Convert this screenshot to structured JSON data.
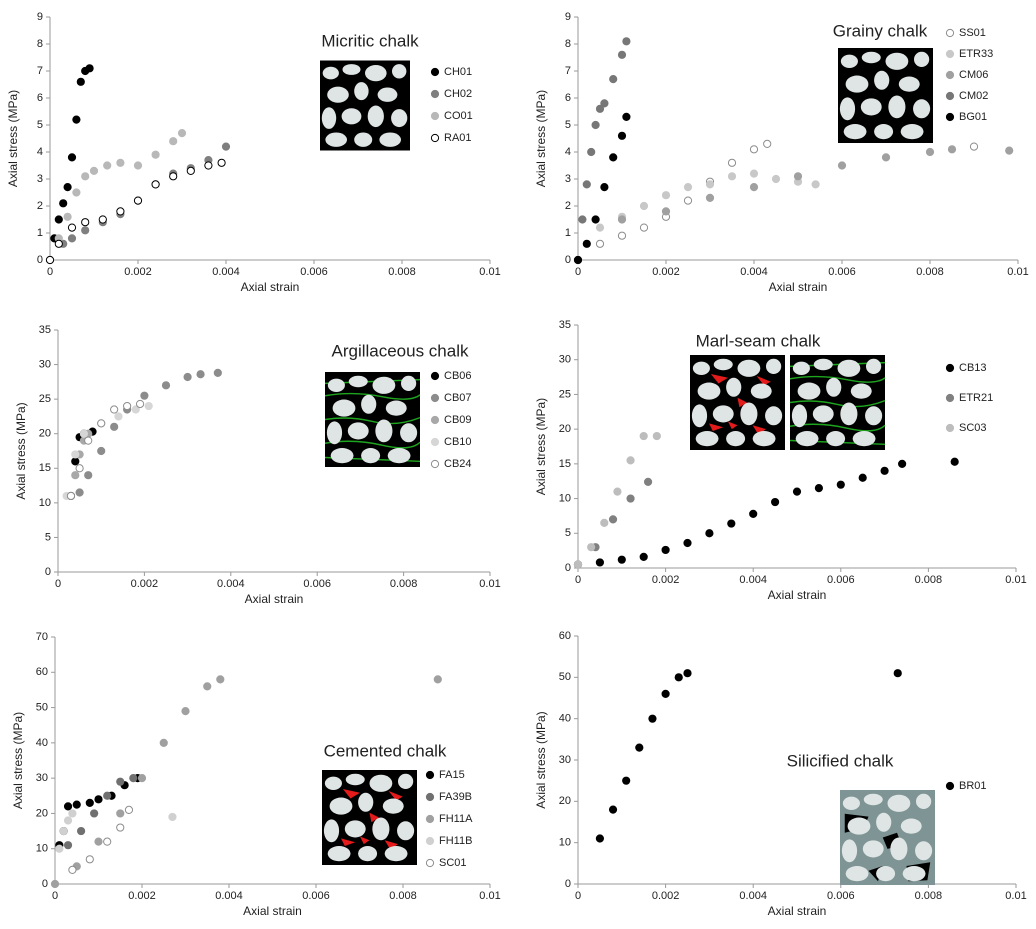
{
  "chart_data": [
    {
      "type": "scatter",
      "title": "Micritic chalk",
      "xlabel": "Axial strain",
      "ylabel": "Axial stress (MPa)",
      "xlim": [
        0,
        0.01
      ],
      "xticks": [
        0,
        0.002,
        0.004,
        0.006,
        0.008,
        0.01
      ],
      "ylim": [
        0,
        9
      ],
      "yticks": [
        0,
        1,
        2,
        3,
        4,
        5,
        6,
        7,
        8,
        9
      ],
      "series": [
        {
          "name": "CH01",
          "color": "#000000",
          "marker": "filled",
          "x": [
            0,
            0.0001,
            0.0002,
            0.0003,
            0.0004,
            0.0005,
            0.0006,
            0.0007,
            0.0008,
            0.0009
          ],
          "values": [
            0,
            0.8,
            1.5,
            2.1,
            2.7,
            3.8,
            5.2,
            6.6,
            7.0,
            7.1
          ]
        },
        {
          "name": "CH02",
          "color": "#7f7f7f",
          "marker": "filled",
          "x": [
            0.0003,
            0.0005,
            0.0008,
            0.0012,
            0.0016,
            0.002,
            0.0024,
            0.0028,
            0.0032,
            0.0036,
            0.004
          ],
          "values": [
            0.6,
            0.8,
            1.1,
            1.4,
            1.7,
            2.2,
            2.8,
            3.2,
            3.4,
            3.7,
            4.2
          ]
        },
        {
          "name": "CO01",
          "color": "#b8b8b8",
          "marker": "filled",
          "x": [
            0,
            0.0002,
            0.0004,
            0.0006,
            0.0008,
            0.001,
            0.0013,
            0.0016,
            0.002,
            0.0024,
            0.0028,
            0.003
          ],
          "values": [
            0,
            0.8,
            1.6,
            2.5,
            3.1,
            3.3,
            3.5,
            3.6,
            3.5,
            3.9,
            4.4,
            4.7
          ]
        },
        {
          "name": "RA01",
          "color": "#000000",
          "marker": "open",
          "x": [
            0,
            0.0002,
            0.0005,
            0.0008,
            0.0012,
            0.0016,
            0.002,
            0.0024,
            0.0028,
            0.0032,
            0.0036,
            0.0039
          ],
          "values": [
            0,
            0.6,
            1.2,
            1.4,
            1.5,
            1.8,
            2.2,
            2.8,
            3.1,
            3.3,
            3.5,
            3.6
          ]
        }
      ]
    },
    {
      "type": "scatter",
      "title": "Grainy chalk",
      "xlabel": "Axial strain",
      "ylabel": "Axial stress (MPa)",
      "xlim": [
        0,
        0.01
      ],
      "xticks": [
        0,
        0.002,
        0.004,
        0.006,
        0.008,
        0.01
      ],
      "ylim": [
        0,
        9
      ],
      "yticks": [
        0,
        1,
        2,
        3,
        4,
        5,
        6,
        7,
        8,
        9
      ],
      "series": [
        {
          "name": "SS01",
          "color": "#8c8c8c",
          "marker": "open",
          "x": [
            0,
            0.0005,
            0.001,
            0.0015,
            0.002,
            0.0025,
            0.003,
            0.0035,
            0.004,
            0.0043,
            0.009
          ],
          "values": [
            0,
            0.6,
            0.9,
            1.2,
            1.6,
            2.2,
            2.9,
            3.6,
            4.1,
            4.3,
            4.2
          ]
        },
        {
          "name": "ETR33",
          "color": "#c8c8c8",
          "marker": "filled",
          "x": [
            0,
            0.0005,
            0.001,
            0.0015,
            0.002,
            0.0025,
            0.003,
            0.0035,
            0.004,
            0.0045,
            0.005,
            0.0054
          ],
          "values": [
            0,
            1.2,
            1.6,
            2.0,
            2.4,
            2.7,
            2.8,
            3.1,
            3.2,
            3.0,
            2.9,
            2.8
          ]
        },
        {
          "name": "CM06",
          "color": "#a0a0a0",
          "marker": "filled",
          "x": [
            0,
            0.001,
            0.002,
            0.003,
            0.004,
            0.005,
            0.006,
            0.007,
            0.008,
            0.0085,
            0.0098
          ],
          "values": [
            0,
            1.5,
            1.8,
            2.3,
            2.7,
            3.1,
            3.5,
            3.8,
            4.0,
            4.1,
            4.05
          ]
        },
        {
          "name": "CM02",
          "color": "#777777",
          "marker": "filled",
          "x": [
            0,
            0.0001,
            0.0002,
            0.0003,
            0.0004,
            0.0005,
            0.0006,
            0.0008,
            0.001,
            0.0011
          ],
          "values": [
            0,
            1.5,
            2.8,
            4.0,
            5.0,
            5.6,
            5.8,
            6.7,
            7.6,
            8.1
          ]
        },
        {
          "name": "BG01",
          "color": "#000000",
          "marker": "filled",
          "x": [
            0,
            0.0002,
            0.0004,
            0.0006,
            0.0008,
            0.001,
            0.0011
          ],
          "values": [
            0,
            0.6,
            1.5,
            2.7,
            3.8,
            4.6,
            5.3
          ]
        }
      ]
    },
    {
      "type": "scatter",
      "title": "Argillaceous chalk",
      "xlabel": "Axial strain",
      "ylabel": "Axial stress (MPa)",
      "xlim": [
        0,
        0.01
      ],
      "xticks": [
        0,
        0.002,
        0.004,
        0.006,
        0.008,
        0.01
      ],
      "ylim": [
        0,
        35
      ],
      "yticks": [
        0,
        5,
        10,
        15,
        20,
        25,
        30,
        35
      ],
      "series": [
        {
          "name": "CB06",
          "color": "#000000",
          "marker": "filled",
          "x": [
            0.0003,
            0.0004,
            0.0005,
            0.0006,
            0.0008
          ],
          "values": [
            11,
            16,
            19.5,
            20,
            20.3
          ]
        },
        {
          "name": "CB07",
          "color": "#8c8c8c",
          "marker": "filled",
          "x": [
            0.0005,
            0.0007,
            0.001,
            0.0013,
            0.0016,
            0.002,
            0.0025,
            0.003,
            0.0033,
            0.0037
          ],
          "values": [
            11.5,
            14,
            17.5,
            21,
            23.5,
            25.5,
            27,
            28.2,
            28.6,
            28.8
          ]
        },
        {
          "name": "CB09",
          "color": "#a8a8a8",
          "marker": "filled",
          "x": [
            0.0003,
            0.0004,
            0.0005,
            0.0006,
            0.0007
          ],
          "values": [
            11,
            14,
            17,
            19,
            20
          ]
        },
        {
          "name": "CB10",
          "color": "#d6d6d6",
          "marker": "filled",
          "x": [
            0.0002,
            0.0004,
            0.0006,
            0.001,
            0.0014,
            0.0018,
            0.0021
          ],
          "values": [
            11,
            17,
            20,
            21.5,
            22.5,
            23.5,
            24
          ]
        },
        {
          "name": "CB24",
          "color": "#8c8c8c",
          "marker": "open",
          "x": [
            0.0003,
            0.0005,
            0.0007,
            0.001,
            0.0013,
            0.0016,
            0.0019
          ],
          "values": [
            11,
            15,
            19,
            21.5,
            23.5,
            24,
            24.3
          ]
        }
      ]
    },
    {
      "type": "scatter",
      "title": "Marl-seam chalk",
      "xlabel": "Axial strain",
      "ylabel": "Axial stress (MPa)",
      "xlim": [
        0,
        0.01
      ],
      "xticks": [
        0,
        0.002,
        0.004,
        0.006,
        0.008,
        0.01
      ],
      "ylim": [
        0,
        35
      ],
      "yticks": [
        0,
        5,
        10,
        15,
        20,
        25,
        30,
        35
      ],
      "series": [
        {
          "name": "CB13",
          "color": "#000000",
          "marker": "filled",
          "x": [
            0,
            0.0005,
            0.001,
            0.0015,
            0.002,
            0.0025,
            0.003,
            0.0035,
            0.004,
            0.0045,
            0.005,
            0.0055,
            0.006,
            0.0065,
            0.007,
            0.0074,
            0.0086
          ],
          "values": [
            0.5,
            0.8,
            1.2,
            1.6,
            2.6,
            3.6,
            5,
            6.4,
            7.8,
            9.5,
            11,
            11.5,
            12,
            13,
            14,
            15,
            15.3
          ]
        },
        {
          "name": "ETR21",
          "color": "#808080",
          "marker": "filled",
          "x": [
            0,
            0.0004,
            0.0008,
            0.0012,
            0.0016
          ],
          "values": [
            0.5,
            3,
            7,
            10,
            12.4
          ]
        },
        {
          "name": "SC03",
          "color": "#bdbdbd",
          "marker": "filled",
          "x": [
            0,
            0.0003,
            0.0006,
            0.0009,
            0.0012,
            0.0015,
            0.0018
          ],
          "values": [
            0.5,
            3,
            6.5,
            11,
            15.5,
            19,
            19
          ]
        }
      ]
    },
    {
      "type": "scatter",
      "title": "Cemented chalk",
      "xlabel": "Axial strain",
      "ylabel": "Axial stress (MPa)",
      "xlim": [
        0,
        0.01
      ],
      "xticks": [
        0,
        0.002,
        0.004,
        0.006,
        0.008,
        0.01
      ],
      "ylim": [
        0,
        70
      ],
      "yticks": [
        0,
        10,
        20,
        30,
        40,
        50,
        60,
        70
      ],
      "series": [
        {
          "name": "FA15",
          "color": "#000000",
          "marker": "filled",
          "x": [
            0.0001,
            0.0002,
            0.0003,
            0.0005,
            0.0008,
            0.001,
            0.0013,
            0.0016,
            0.0019
          ],
          "values": [
            11,
            15,
            22,
            22.5,
            23,
            24,
            25,
            28,
            30
          ]
        },
        {
          "name": "FA39B",
          "color": "#707070",
          "marker": "filled",
          "x": [
            0.0003,
            0.0006,
            0.0009,
            0.0012,
            0.0015,
            0.0018
          ],
          "values": [
            11,
            15,
            20,
            25,
            29,
            30
          ]
        },
        {
          "name": "FH11A",
          "color": "#a0a0a0",
          "marker": "filled",
          "x": [
            0,
            0.0005,
            0.001,
            0.0015,
            0.002,
            0.0025,
            0.003,
            0.0035,
            0.0038,
            0.0088
          ],
          "values": [
            0,
            5,
            12,
            20,
            30,
            40,
            49,
            56,
            58,
            58
          ]
        },
        {
          "name": "FH11B",
          "color": "#d0d0d0",
          "marker": "filled",
          "x": [
            0.0001,
            0.0002,
            0.0003,
            0.0004,
            0.0027
          ],
          "values": [
            10,
            15,
            18,
            20,
            19
          ]
        },
        {
          "name": "SC01",
          "color": "#8c8c8c",
          "marker": "open",
          "x": [
            0.0004,
            0.0008,
            0.0012,
            0.0015,
            0.0017
          ],
          "values": [
            4,
            7,
            12,
            16,
            21
          ]
        }
      ]
    },
    {
      "type": "scatter",
      "title": "Silicified chalk",
      "xlabel": "Axial strain",
      "ylabel": "Axial stress (MPa)",
      "xlim": [
        0,
        0.01
      ],
      "xticks": [
        0,
        0.002,
        0.004,
        0.006,
        0.008,
        0.01
      ],
      "ylim": [
        0,
        60
      ],
      "yticks": [
        0,
        10,
        20,
        30,
        40,
        50,
        60
      ],
      "series": [
        {
          "name": "BR01",
          "color": "#000000",
          "marker": "filled",
          "x": [
            0.0005,
            0.0008,
            0.0011,
            0.0014,
            0.0017,
            0.002,
            0.0023,
            0.0025,
            0.0073
          ],
          "values": [
            11,
            18,
            25,
            33,
            40,
            46,
            50,
            51,
            51
          ]
        }
      ]
    }
  ]
}
